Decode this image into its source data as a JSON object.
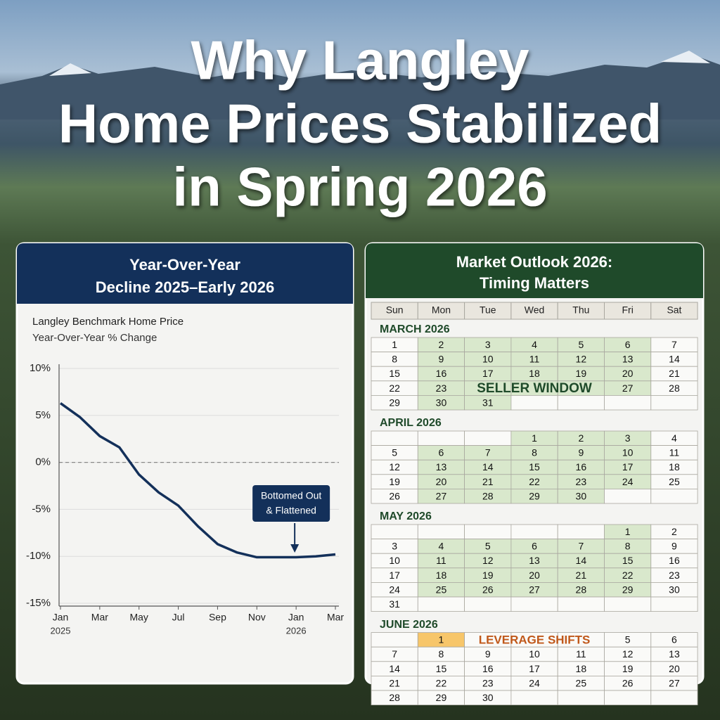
{
  "title_lines": [
    "Why Langley",
    "Home Prices Stabilized",
    "in Spring 2026"
  ],
  "chart_data": {
    "type": "line",
    "title_lines": [
      "Year-Over-Year",
      "Decline 2025–Early 2026"
    ],
    "subtitle_lines": [
      "Langley Benchmark Home Price",
      "Year-Over-Year % Change"
    ],
    "x": [
      "2025-01",
      "2025-02",
      "2025-03",
      "2025-04",
      "2025-05",
      "2025-06",
      "2025-07",
      "2025-08",
      "2025-09",
      "2025-10",
      "2025-11",
      "2025-12",
      "2026-01",
      "2026-02",
      "2026-03"
    ],
    "values": [
      6.3,
      4.8,
      2.8,
      1.6,
      -1.3,
      -3.2,
      -4.6,
      -6.8,
      -8.7,
      -9.6,
      -10.1,
      -10.1,
      -10.1,
      -10.0,
      -9.8
    ],
    "color": "#13305a",
    "xlim": [
      "2025-01",
      "2026-03"
    ],
    "xticks": [
      {
        "value": "2025-01",
        "label": "Jan"
      },
      {
        "value": "2025-03",
        "label": "Mar"
      },
      {
        "value": "2025-05",
        "label": "May"
      },
      {
        "value": "2025-07",
        "label": "Jul"
      },
      {
        "value": "2025-09",
        "label": "Sep"
      },
      {
        "value": "2025-11",
        "label": "Nov"
      },
      {
        "value": "2026-01",
        "label": "Jan"
      },
      {
        "value": "2026-03",
        "label": "Mar"
      }
    ],
    "xtick_years": [
      {
        "value": "2025-01",
        "label": "2025"
      },
      {
        "value": "2026-01",
        "label": "2026"
      }
    ],
    "ylim": [
      -15,
      10
    ],
    "yticks": [
      {
        "value": 10,
        "label": "10%"
      },
      {
        "value": 5,
        "label": "5%"
      },
      {
        "value": 0,
        "label": "0%"
      },
      {
        "value": -5,
        "label": "-5%"
      },
      {
        "value": -10,
        "label": "-10%"
      },
      {
        "value": -15,
        "label": "-15%"
      }
    ],
    "grid": true,
    "reference_line": 0,
    "annotation": {
      "lines": [
        "Bottomed Out",
        "& Flattened"
      ],
      "x": "2026-01"
    }
  },
  "calendar": {
    "title_lines": [
      "Market Outlook 2026:",
      "Timing Matters"
    ],
    "weekdays": [
      "Sun",
      "Mon",
      "Tue",
      "Wed",
      "Thu",
      "Fri",
      "Sat"
    ],
    "months": [
      {
        "name": "MARCH 2026",
        "highlight_weekdays": true,
        "weeks": [
          [
            1,
            2,
            3,
            4,
            5,
            6,
            7
          ],
          [
            8,
            9,
            10,
            11,
            12,
            13,
            14
          ],
          [
            15,
            16,
            17,
            18,
            19,
            20,
            21
          ],
          [
            22,
            23,
            null,
            null,
            null,
            27,
            28
          ],
          [
            29,
            30,
            31,
            null,
            null,
            null,
            null
          ]
        ]
      },
      {
        "name": "APRIL 2026",
        "highlight_weekdays": true,
        "weeks": [
          [
            null,
            null,
            null,
            1,
            2,
            3,
            4
          ],
          [
            5,
            6,
            7,
            8,
            9,
            10,
            11
          ],
          [
            12,
            13,
            14,
            15,
            16,
            17,
            18
          ],
          [
            19,
            20,
            21,
            22,
            23,
            24,
            25
          ],
          [
            26,
            27,
            28,
            29,
            30,
            null,
            null
          ]
        ]
      },
      {
        "name": "MAY 2026",
        "highlight_weekdays": true,
        "weeks": [
          [
            null,
            null,
            null,
            null,
            null,
            1,
            2
          ],
          [
            3,
            4,
            5,
            6,
            7,
            8,
            9
          ],
          [
            10,
            11,
            12,
            13,
            14,
            15,
            16
          ],
          [
            17,
            18,
            19,
            20,
            21,
            22,
            23
          ],
          [
            24,
            25,
            26,
            27,
            28,
            29,
            30
          ],
          [
            31,
            null,
            null,
            null,
            null,
            null,
            null
          ]
        ]
      },
      {
        "name": "JUNE 2026",
        "highlight_weekdays": false,
        "weeks": [
          [
            null,
            1,
            null,
            null,
            null,
            5,
            6
          ],
          [
            7,
            8,
            9,
            10,
            11,
            12,
            13
          ],
          [
            14,
            15,
            16,
            17,
            18,
            19,
            20
          ],
          [
            21,
            22,
            23,
            24,
            25,
            26,
            27
          ],
          [
            28,
            29,
            30,
            null,
            null,
            null,
            null
          ]
        ]
      }
    ],
    "seller_window": "SELLER WINDOW",
    "leverage_shifts": "LEVERAGE SHIFTS"
  }
}
